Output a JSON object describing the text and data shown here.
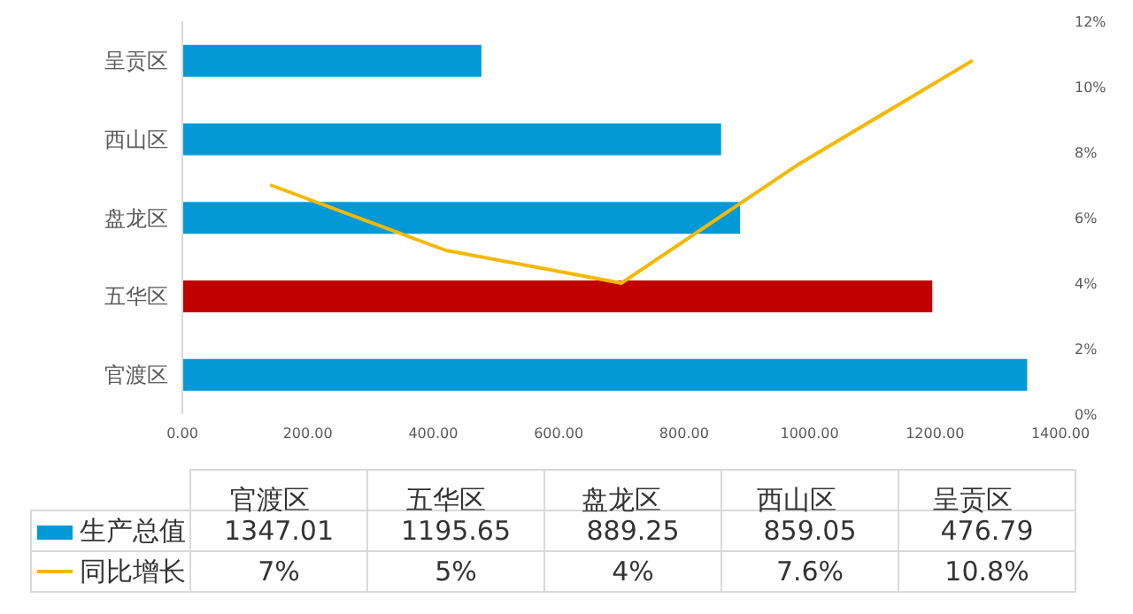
{
  "chart_data": [
    {
      "type": "bar",
      "orientation": "horizontal",
      "categories": [
        "呈贡区",
        "西山区",
        "盘龙区",
        "五华区",
        "官渡区"
      ],
      "xlim": [
        0,
        1400
      ],
      "xticks": [
        {
          "value": 0,
          "label": "0.00"
        },
        {
          "value": 200,
          "label": "200.00"
        },
        {
          "value": 400,
          "label": "400.00"
        },
        {
          "value": 600,
          "label": "600.00"
        },
        {
          "value": 800,
          "label": "800.00"
        },
        {
          "value": 1000,
          "label": "1000.00"
        },
        {
          "value": 1200,
          "label": "1200.00"
        },
        {
          "value": 1400,
          "label": "1400.00"
        }
      ],
      "series": [
        {
          "color": "#0399d6",
          "colors": [
            "#0399d6",
            "#0399d6",
            "#0399d6",
            "#c00000",
            "#0399d6"
          ],
          "values": [
            476.79,
            859.05,
            889.25,
            1195.65,
            1347.01
          ]
        }
      ],
      "grid": false
    },
    {
      "type": "line",
      "categories": [
        "官渡区",
        "五华区",
        "盘龙区",
        "西山区",
        "呈贡区"
      ],
      "ylim": [
        0,
        12
      ],
      "yticks": [
        {
          "value": 0,
          "label": "0%"
        },
        {
          "value": 2,
          "label": "2%"
        },
        {
          "value": 4,
          "label": "4%"
        },
        {
          "value": 6,
          "label": "6%"
        },
        {
          "value": 8,
          "label": "8%"
        },
        {
          "value": 10,
          "label": "10%"
        },
        {
          "value": 12,
          "label": "12%"
        }
      ],
      "series": [
        {
          "color": "#f5b800",
          "values": [
            7,
            5,
            4,
            7.6,
            10.8
          ]
        }
      ],
      "grid": false
    },
    {
      "type": "other",
      "legend": "left",
      "series": [
        {
          "name": "生产总值",
          "type": "bar",
          "color": "#0399d6"
        },
        {
          "name": "同比增长",
          "type": "line",
          "color": "#f5b800"
        }
      ],
      "annotations": [
        "1347.01",
        "1195.65",
        "889.25",
        "859.05",
        "476.79",
        "7%",
        "5%",
        "4%",
        "7.6%",
        "10.8%"
      ]
    }
  ]
}
